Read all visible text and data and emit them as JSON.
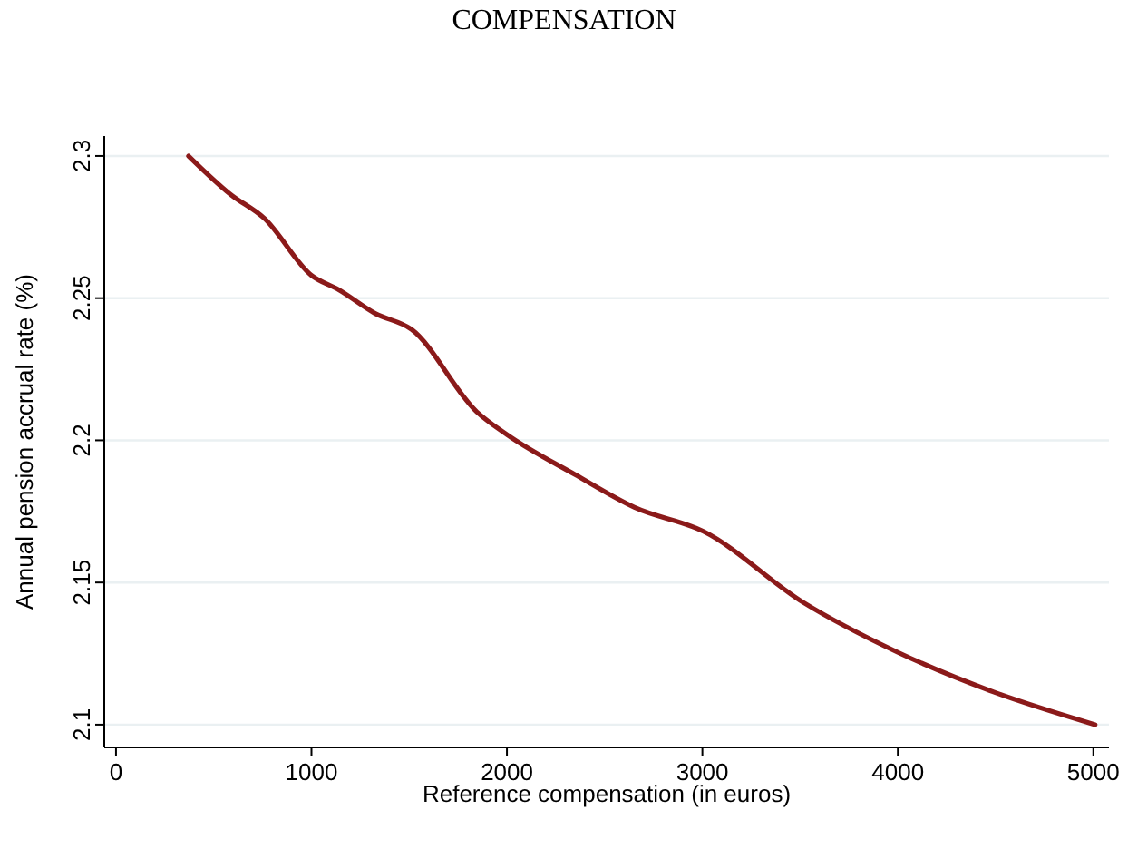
{
  "chart_data": {
    "type": "line",
    "title": "COMPENSATION",
    "xlabel": "Reference compensation (in euros)",
    "ylabel": "Annual pension accrual rate (%)",
    "x": [
      371,
      584,
      760,
      1000,
      1138,
      1326,
      1512,
      1846,
      2000,
      2347,
      2653,
      3005,
      3516,
      3998,
      4490,
      5009
    ],
    "series": [
      {
        "color": "#8b1a1a",
        "values": [
          2.3,
          2.2866,
          2.278,
          2.258,
          2.253,
          2.2446,
          2.239,
          2.21,
          2.202,
          2.188,
          2.1764,
          2.168,
          2.143,
          2.1255,
          2.1115,
          2.1
        ]
      }
    ],
    "xlim": [
      -60,
      5080
    ],
    "ylim": [
      2.092,
      2.307
    ],
    "xticks": [
      0,
      1000,
      2000,
      3000,
      4000,
      5000
    ],
    "yticks": [
      2.1,
      2.15,
      2.2,
      2.25,
      2.3
    ],
    "grid": "y",
    "marker": "none",
    "line_style": "solid"
  }
}
